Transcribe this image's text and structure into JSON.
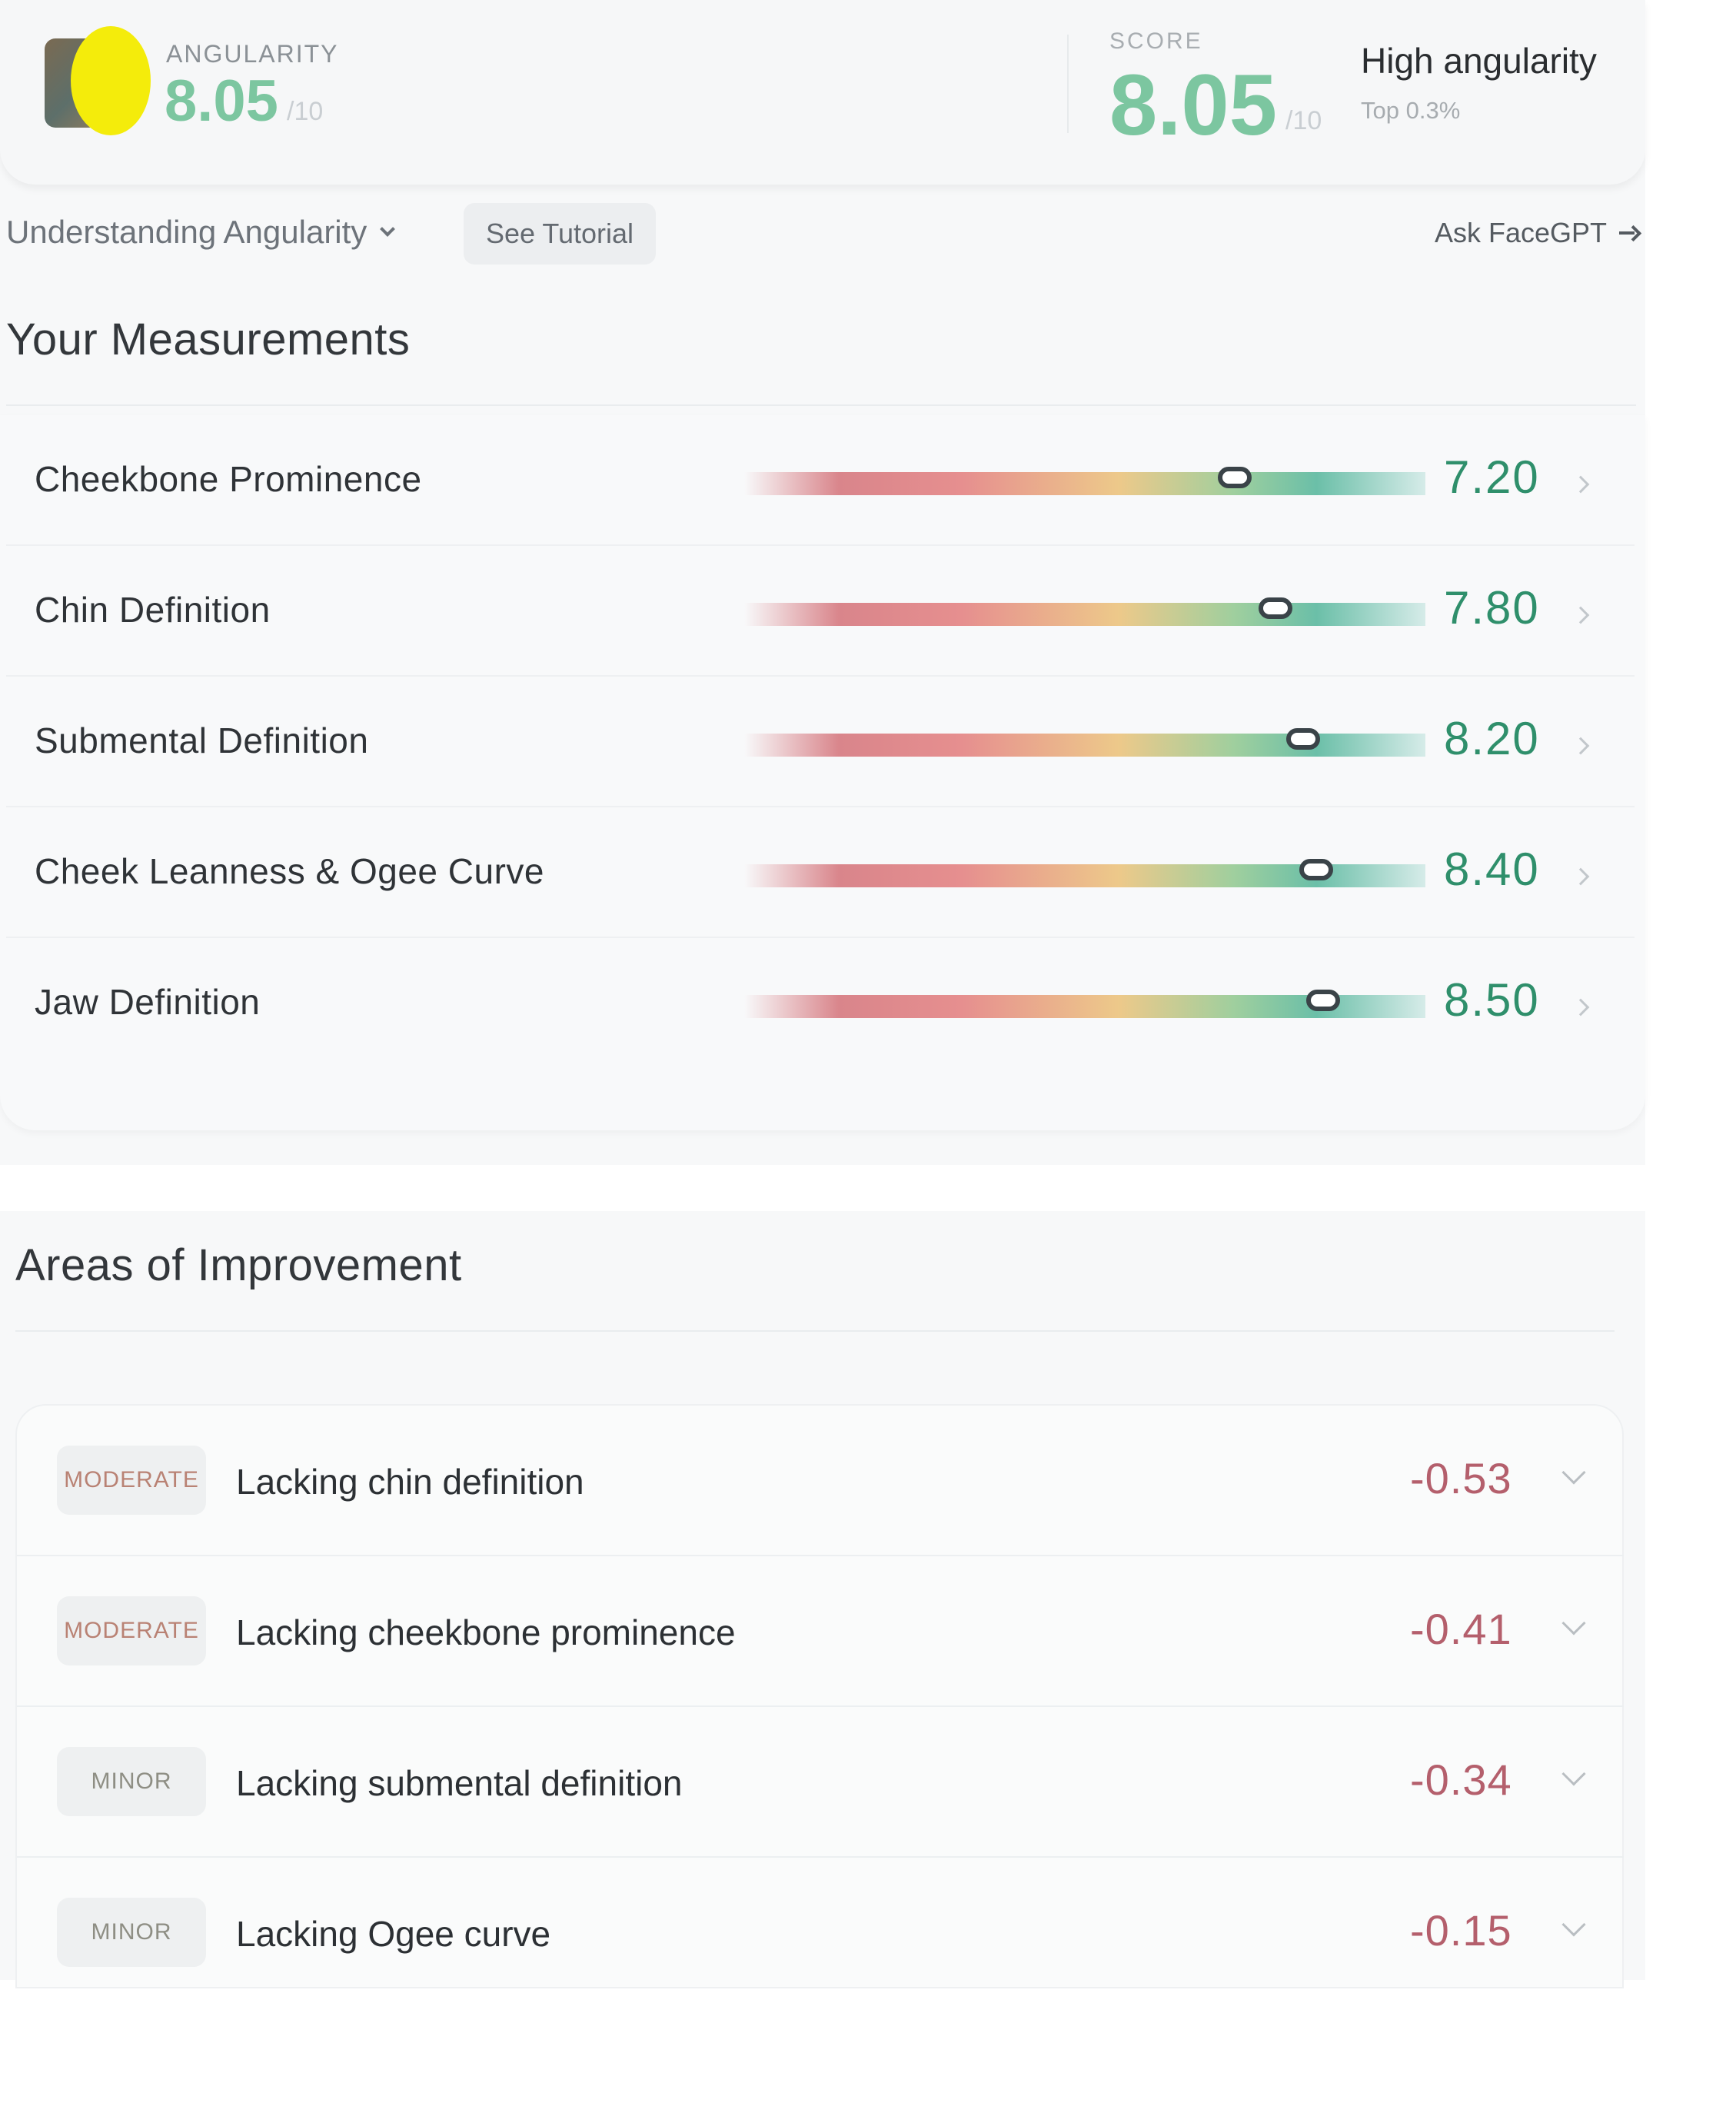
{
  "header": {
    "metric_label": "ANGULARITY",
    "metric_value": "8.05",
    "metric_denominator": "/10",
    "score_label": "SCORE",
    "score_value": "8.05",
    "score_denominator": "/10",
    "verdict": "High angularity",
    "rank": "Top 0.3%"
  },
  "toolbar": {
    "understanding_label": "Understanding Angularity",
    "tutorial_label": "See Tutorial",
    "ask_label": "Ask FaceGPT"
  },
  "measurements": {
    "title": "Your Measurements",
    "items": [
      {
        "label": "Cheekbone Prominence",
        "value": "7.20",
        "level": 0.72
      },
      {
        "label": "Chin Definition",
        "value": "7.80",
        "level": 0.78
      },
      {
        "label": "Submental Definition",
        "value": "8.20",
        "level": 0.82
      },
      {
        "label": "Cheek Leanness & Ogee Curve",
        "value": "8.40",
        "level": 0.84
      },
      {
        "label": "Jaw Definition",
        "value": "8.50",
        "level": 0.85
      }
    ]
  },
  "improvements": {
    "title": "Areas of Improvement",
    "items": [
      {
        "severity": "MODERATE",
        "label": "Lacking chin definition",
        "delta": "-0.53",
        "color": "#b98274"
      },
      {
        "severity": "MODERATE",
        "label": "Lacking cheekbone prominence",
        "delta": "-0.41",
        "color": "#b98274"
      },
      {
        "severity": "MINOR",
        "label": "Lacking submental definition",
        "delta": "-0.34",
        "color": "#8e8e84"
      },
      {
        "severity": "MINOR",
        "label": "Lacking Ogee curve",
        "delta": "-0.15",
        "color": "#8e8e84"
      }
    ]
  },
  "colors": {
    "accent_green": "#7cc6a0",
    "value_green": "#2f8f6b",
    "delta_red": "#b45f6c"
  }
}
